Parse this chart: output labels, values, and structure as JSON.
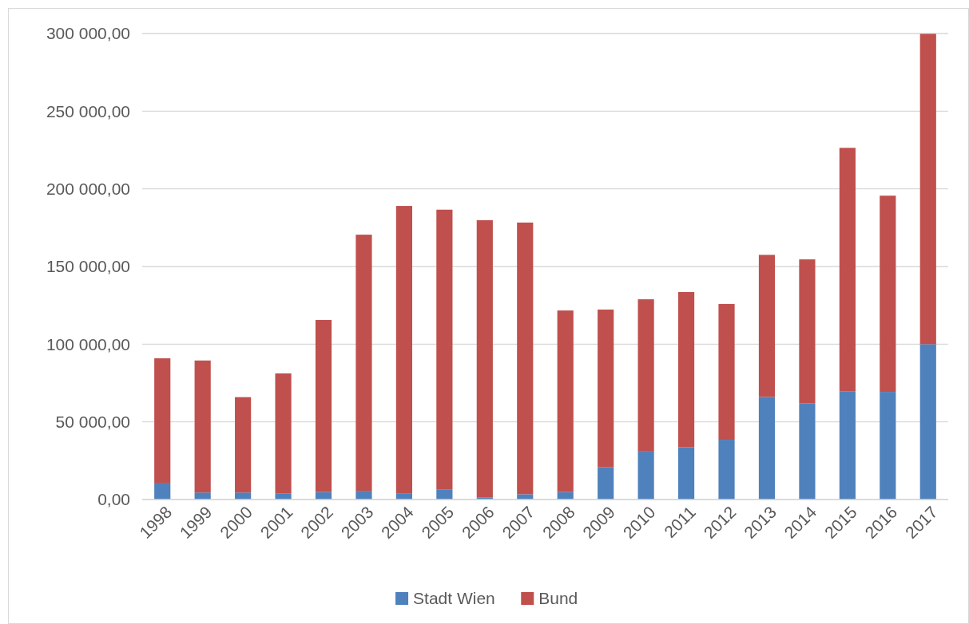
{
  "chart_data": {
    "type": "bar",
    "stacked": true,
    "categories": [
      "1998",
      "1999",
      "2000",
      "2001",
      "2002",
      "2003",
      "2004",
      "2005",
      "2006",
      "2007",
      "2008",
      "2009",
      "2010",
      "2011",
      "2012",
      "2013",
      "2014",
      "2015",
      "2016",
      "2017"
    ],
    "series": [
      {
        "name": "Stadt Wien",
        "color": "#4f81bd",
        "values": [
          10800,
          4500,
          4500,
          4000,
          4800,
          5600,
          3700,
          6300,
          1200,
          3400,
          4800,
          20900,
          31300,
          33700,
          38500,
          66100,
          62000,
          69500,
          69300,
          100000
        ]
      },
      {
        "name": "Bund",
        "color": "#c0504d",
        "values": [
          80100,
          85000,
          61400,
          77200,
          110800,
          164900,
          185300,
          180300,
          178600,
          174900,
          116900,
          101400,
          97600,
          99900,
          87400,
          91400,
          92600,
          156900,
          126300,
          199800
        ]
      }
    ],
    "ylim": [
      0,
      300000
    ],
    "yticks": [
      {
        "value": 0,
        "label": "0,00"
      },
      {
        "value": 50000,
        "label": "50 000,00"
      },
      {
        "value": 100000,
        "label": "100 000,00"
      },
      {
        "value": 150000,
        "label": "150 000,00"
      },
      {
        "value": 200000,
        "label": "200 000,00"
      },
      {
        "value": 250000,
        "label": "250 000,00"
      },
      {
        "value": 300000,
        "label": "300 000,00"
      }
    ],
    "grid": "y",
    "legend": "bottom"
  }
}
